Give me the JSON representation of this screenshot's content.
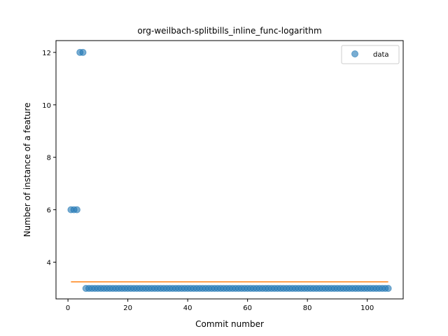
{
  "chart_data": {
    "type": "scatter",
    "title": "org-weilbach-splitbills_inline_func-logarithm",
    "xlabel": "Commit number",
    "ylabel": "Number of instance of a feature",
    "xlim": [
      -4,
      112
    ],
    "ylim": [
      2.6,
      12.45
    ],
    "x_ticks": [
      0,
      20,
      40,
      60,
      80,
      100
    ],
    "y_ticks": [
      4,
      6,
      8,
      10,
      12
    ],
    "grid": false,
    "legend_position": "top-right",
    "series": [
      {
        "name": "data",
        "color": "#1f77b4",
        "points": [
          [
            1,
            6
          ],
          [
            2,
            6
          ],
          [
            3,
            6
          ],
          [
            4,
            12
          ],
          [
            5,
            12
          ],
          [
            6,
            3
          ],
          [
            7,
            3
          ],
          [
            8,
            3
          ],
          [
            9,
            3
          ],
          [
            10,
            3
          ],
          [
            11,
            3
          ],
          [
            12,
            3
          ],
          [
            13,
            3
          ],
          [
            14,
            3
          ],
          [
            15,
            3
          ],
          [
            16,
            3
          ],
          [
            17,
            3
          ],
          [
            18,
            3
          ],
          [
            19,
            3
          ],
          [
            20,
            3
          ],
          [
            21,
            3
          ],
          [
            22,
            3
          ],
          [
            23,
            3
          ],
          [
            24,
            3
          ],
          [
            25,
            3
          ],
          [
            26,
            3
          ],
          [
            27,
            3
          ],
          [
            28,
            3
          ],
          [
            29,
            3
          ],
          [
            30,
            3
          ],
          [
            31,
            3
          ],
          [
            32,
            3
          ],
          [
            33,
            3
          ],
          [
            34,
            3
          ],
          [
            35,
            3
          ],
          [
            36,
            3
          ],
          [
            37,
            3
          ],
          [
            38,
            3
          ],
          [
            39,
            3
          ],
          [
            40,
            3
          ],
          [
            41,
            3
          ],
          [
            42,
            3
          ],
          [
            43,
            3
          ],
          [
            44,
            3
          ],
          [
            45,
            3
          ],
          [
            46,
            3
          ],
          [
            47,
            3
          ],
          [
            48,
            3
          ],
          [
            49,
            3
          ],
          [
            50,
            3
          ],
          [
            51,
            3
          ],
          [
            52,
            3
          ],
          [
            53,
            3
          ],
          [
            54,
            3
          ],
          [
            55,
            3
          ],
          [
            56,
            3
          ],
          [
            57,
            3
          ],
          [
            58,
            3
          ],
          [
            59,
            3
          ],
          [
            60,
            3
          ],
          [
            61,
            3
          ],
          [
            62,
            3
          ],
          [
            63,
            3
          ],
          [
            64,
            3
          ],
          [
            65,
            3
          ],
          [
            66,
            3
          ],
          [
            67,
            3
          ],
          [
            68,
            3
          ],
          [
            69,
            3
          ],
          [
            70,
            3
          ],
          [
            71,
            3
          ],
          [
            72,
            3
          ],
          [
            73,
            3
          ],
          [
            74,
            3
          ],
          [
            75,
            3
          ],
          [
            76,
            3
          ],
          [
            77,
            3
          ],
          [
            78,
            3
          ],
          [
            79,
            3
          ],
          [
            80,
            3
          ],
          [
            81,
            3
          ],
          [
            82,
            3
          ],
          [
            83,
            3
          ],
          [
            84,
            3
          ],
          [
            85,
            3
          ],
          [
            86,
            3
          ],
          [
            87,
            3
          ],
          [
            88,
            3
          ],
          [
            89,
            3
          ],
          [
            90,
            3
          ],
          [
            91,
            3
          ],
          [
            92,
            3
          ],
          [
            93,
            3
          ],
          [
            94,
            3
          ],
          [
            95,
            3
          ],
          [
            96,
            3
          ],
          [
            97,
            3
          ],
          [
            98,
            3
          ],
          [
            99,
            3
          ],
          [
            100,
            3
          ],
          [
            101,
            3
          ],
          [
            102,
            3
          ],
          [
            103,
            3
          ],
          [
            104,
            3
          ],
          [
            105,
            3
          ],
          [
            106,
            3
          ],
          [
            107,
            3
          ]
        ]
      },
      {
        "type": "line",
        "color": "#ff7f0e",
        "x": [
          1,
          107
        ],
        "y": [
          3.25,
          3.25
        ]
      }
    ]
  }
}
